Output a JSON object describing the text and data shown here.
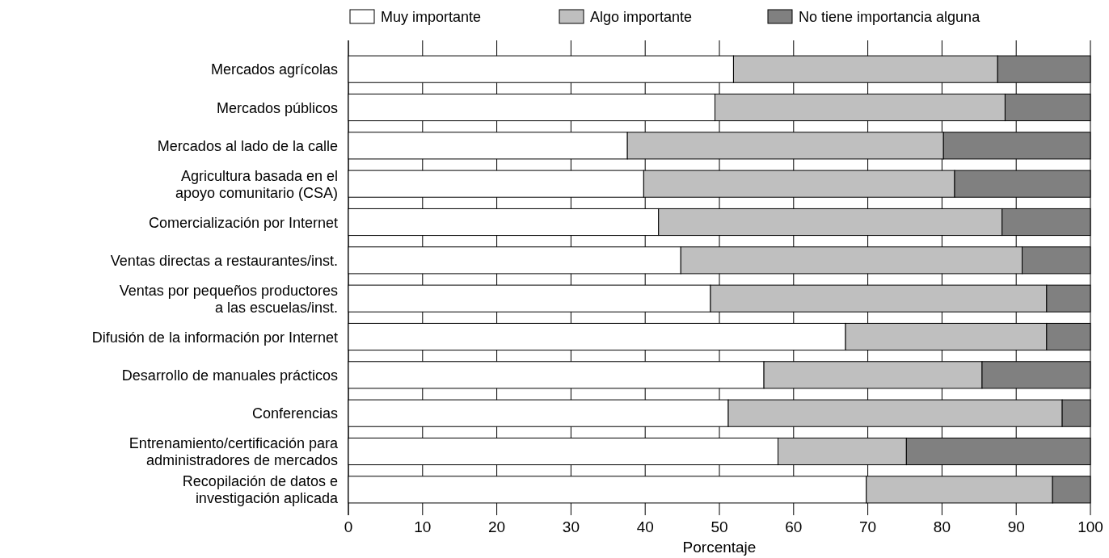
{
  "chart_data": {
    "type": "bar",
    "orientation": "horizontal",
    "stacked": true,
    "xlabel": "Porcentaje",
    "categories": [
      "Mercados agrícolas",
      "Mercados públicos",
      "Mercados al lado de la calle",
      "Agricultura basada en el\napoyo comunitario (CSA)",
      "Comercialización por Internet",
      "Ventas directas a restaurantes/inst.",
      "Ventas por pequeños productores\na las escuelas/inst.",
      "Difusión de la información por Internet",
      "Desarrollo de manuales prácticos",
      "Conferencias",
      "Entrenamiento/certificación para\nadministradores de mercados",
      "Recopilación de datos e\ninvestigación aplicada"
    ],
    "series": [
      {
        "name": "Muy importante",
        "color": "#ffffff",
        "values": [
          51.9,
          49.4,
          37.6,
          39.8,
          41.8,
          44.8,
          48.8,
          67.0,
          56.0,
          51.2,
          57.9,
          69.8
        ]
      },
      {
        "name": "Algo importante",
        "color": "#bfbfbf",
        "values": [
          35.6,
          39.1,
          42.6,
          41.9,
          46.3,
          46.0,
          45.3,
          27.1,
          29.4,
          45.0,
          17.3,
          25.1
        ]
      },
      {
        "name": "No tiene importancia alguna",
        "color": "#808080",
        "values": [
          12.5,
          11.5,
          19.8,
          18.3,
          11.9,
          9.2,
          5.9,
          5.9,
          14.6,
          3.8,
          24.8,
          5.1
        ]
      }
    ],
    "xlim": [
      0,
      100
    ],
    "xticks": [
      0,
      10,
      20,
      30,
      40,
      50,
      60,
      70,
      80,
      90,
      100
    ],
    "grid": "x",
    "legend": "top"
  }
}
